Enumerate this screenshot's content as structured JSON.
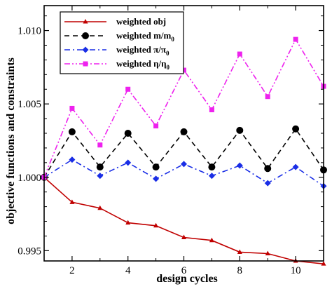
{
  "chart_data": {
    "type": "line",
    "xlabel": "design cycles",
    "ylabel": "objective functions and constraints",
    "xlim": [
      1,
      11
    ],
    "ylim": [
      0.9943,
      1.0117
    ],
    "x_ticks": [
      2,
      4,
      6,
      8,
      10
    ],
    "x_tick_labels": [
      "2",
      "4",
      "6",
      "8",
      "10"
    ],
    "y_ticks": [
      0.995,
      1.0,
      1.005,
      1.01
    ],
    "y_tick_labels": [
      "0.995",
      "1.000",
      "1.005",
      "1.010"
    ],
    "grid": false,
    "legend_position": "top-left",
    "x": [
      1,
      2,
      3,
      4,
      5,
      6,
      7,
      8,
      9,
      10,
      11
    ],
    "series": [
      {
        "name": "weighted obj",
        "legend_main": "weighted obj",
        "legend_sub": "",
        "color": "#c00000",
        "dash": "solid",
        "marker": "triangle",
        "values": [
          1.0,
          0.9983,
          0.9979,
          0.9969,
          0.9967,
          0.9959,
          0.9957,
          0.9949,
          0.9948,
          0.9943,
          0.9941
        ]
      },
      {
        "name": "weighted m/m0",
        "legend_main": "weighted m/m",
        "legend_sub": "0",
        "color": "#000000",
        "dash": "dashed",
        "marker": "circle",
        "values": [
          1.0,
          1.0031,
          1.0007,
          1.003,
          1.0007,
          1.0031,
          1.0007,
          1.0032,
          1.0006,
          1.0033,
          1.0005
        ]
      },
      {
        "name": "weighted π/π0",
        "legend_main": "weighted π/π",
        "legend_sub": "0",
        "color": "#1a2ee6",
        "dash": "dashdot",
        "marker": "diamond",
        "values": [
          1.0,
          1.0012,
          1.0001,
          1.001,
          0.9999,
          1.0009,
          1.0001,
          1.0008,
          0.9996,
          1.0007,
          0.9994
        ]
      },
      {
        "name": "weighted η/η0",
        "legend_main": "weighted η/η",
        "legend_sub": "0",
        "color": "#ee22ee",
        "dash": "dashdotdot",
        "marker": "square",
        "values": [
          1.0,
          1.0047,
          1.0022,
          1.006,
          1.0035,
          1.0073,
          1.0046,
          1.0084,
          1.0055,
          1.0094,
          1.0062
        ]
      }
    ]
  }
}
